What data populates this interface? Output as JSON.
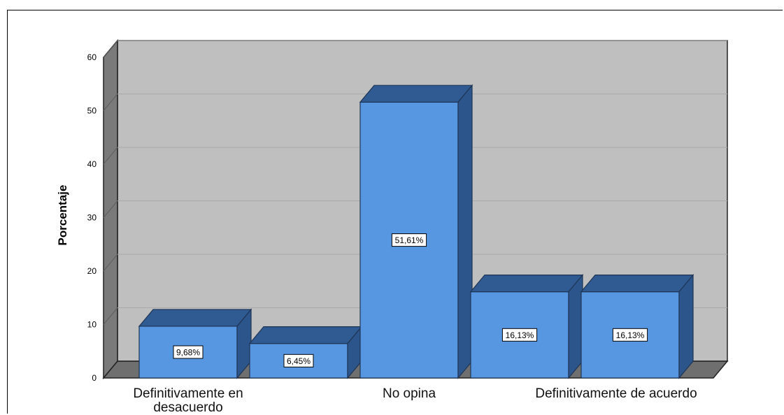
{
  "chart_data": {
    "type": "bar",
    "ylabel": "Porcentaje",
    "xlabel": "",
    "ylim": [
      0,
      60
    ],
    "yticks": [
      0,
      10,
      20,
      30,
      40,
      50,
      60
    ],
    "categories": [
      "Definitivamente en desacuerdo",
      "",
      "No opina",
      "",
      "Definitivamente de acuerdo"
    ],
    "values": [
      9.68,
      6.45,
      51.61,
      16.13,
      16.13
    ],
    "data_labels": [
      "9,68%",
      "6,45%",
      "51,61%",
      "16,13%",
      "16,13%"
    ],
    "grid": true,
    "style": "3d",
    "colors": {
      "bar_front": "#5797e2",
      "bar_top": "#2f5a92",
      "bar_side": "#2c558b",
      "back_wall": "#bfbfbf",
      "side_wall": "#7a7a7a",
      "floor": "#6f6f6f"
    }
  }
}
